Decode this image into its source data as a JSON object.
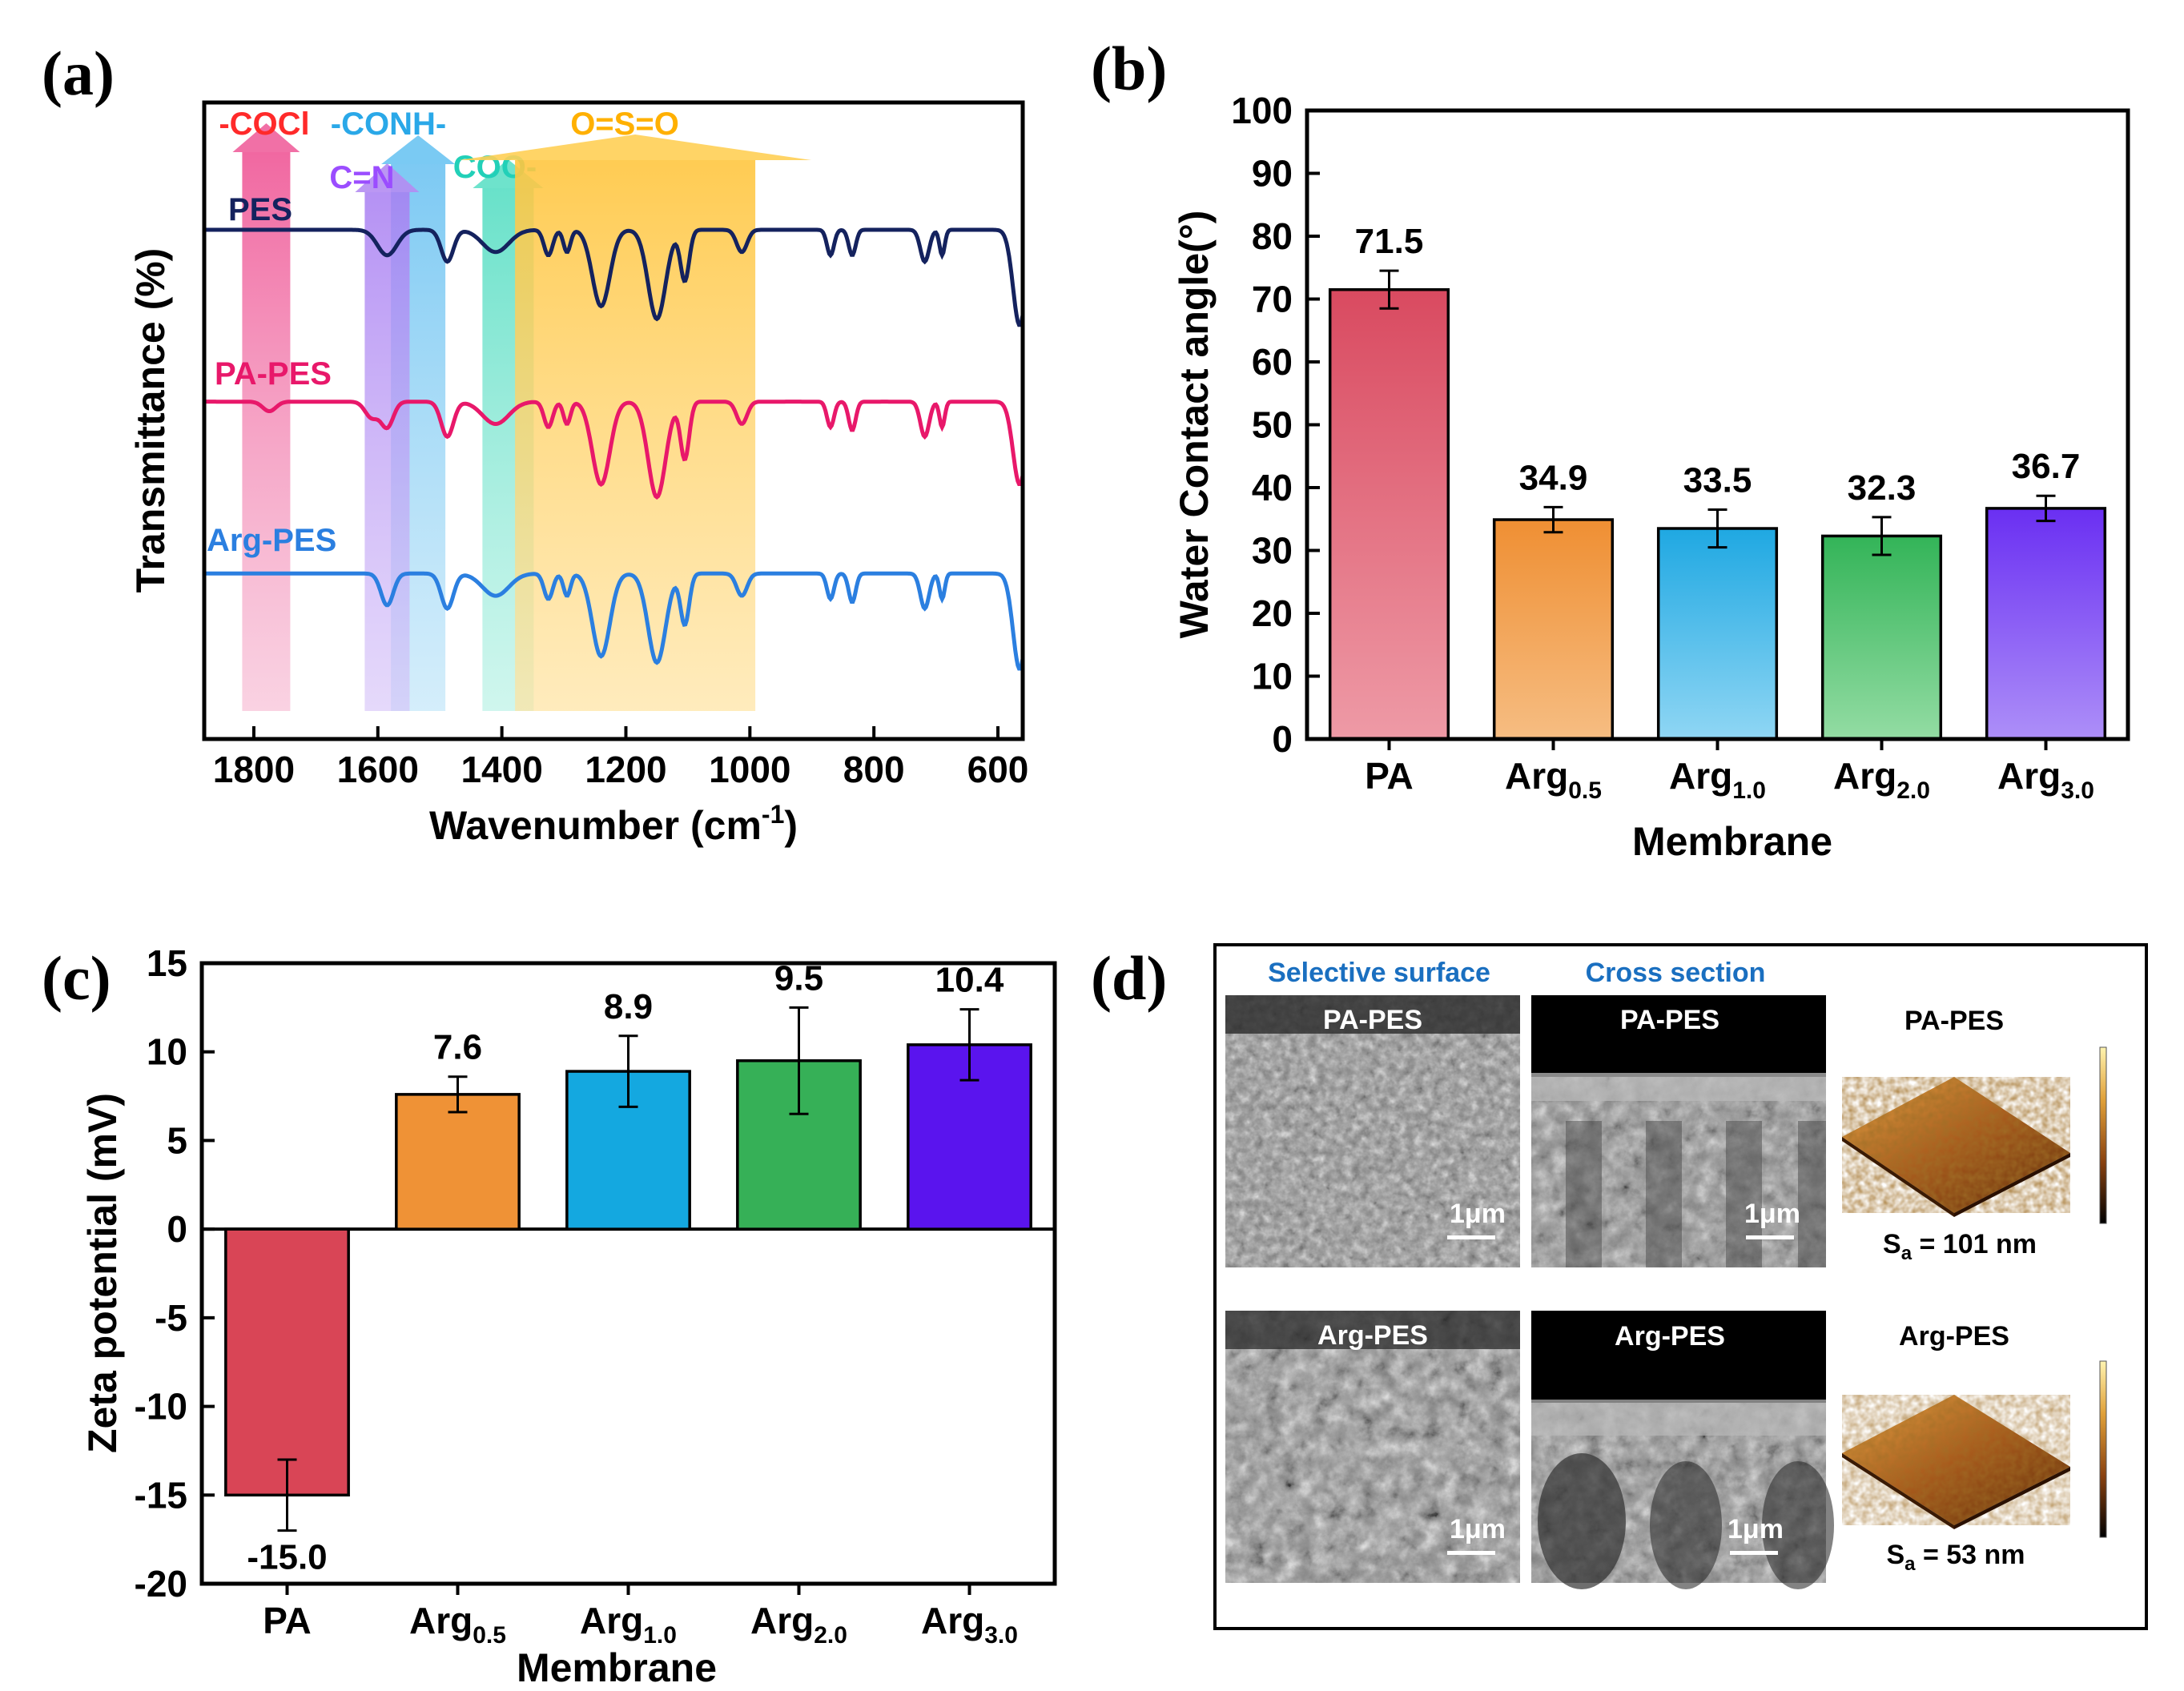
{
  "panels": {
    "a": {
      "label": "(a)"
    },
    "b": {
      "label": "(b)"
    },
    "c": {
      "label": "(c)"
    },
    "d": {
      "label": "(d)"
    }
  },
  "chart_data": [
    {
      "id": "a",
      "type": "line",
      "title": "",
      "xlabel": "Wavenumber (cm",
      "xlabel_sup": "-1",
      "xlabel_close": ")",
      "ylabel": "Transmittance (%)",
      "xlim": [
        1880,
        560
      ],
      "ylim": [
        0,
        1
      ],
      "x_ticks": [
        1800,
        1600,
        1400,
        1200,
        1000,
        800,
        600
      ],
      "series": [
        {
          "name": "PES",
          "color": "#14225e",
          "baseline": 0.8,
          "dips": [
            [
              1585,
              0.04,
              22
            ],
            [
              1488,
              0.05,
              14
            ],
            [
              1410,
              0.035,
              30
            ],
            [
              1325,
              0.04,
              10
            ],
            [
              1295,
              0.035,
              8
            ],
            [
              1240,
              0.12,
              20
            ],
            [
              1150,
              0.14,
              20
            ],
            [
              1105,
              0.08,
              10
            ],
            [
              1013,
              0.035,
              12
            ],
            [
              870,
              0.04,
              8
            ],
            [
              835,
              0.04,
              8
            ],
            [
              718,
              0.05,
              10
            ],
            [
              690,
              0.04,
              6
            ],
            [
              565,
              0.15,
              15
            ]
          ]
        },
        {
          "name": "PA-PES",
          "color": "#e8186a",
          "baseline": 0.53,
          "dips": [
            [
              1775,
              0.015,
              15
            ],
            [
              1610,
              0.025,
              15
            ],
            [
              1585,
              0.04,
              14
            ],
            [
              1488,
              0.055,
              14
            ],
            [
              1410,
              0.035,
              30
            ],
            [
              1325,
              0.04,
              10
            ],
            [
              1295,
              0.035,
              8
            ],
            [
              1240,
              0.13,
              20
            ],
            [
              1150,
              0.15,
              20
            ],
            [
              1105,
              0.09,
              10
            ],
            [
              1013,
              0.035,
              12
            ],
            [
              870,
              0.04,
              8
            ],
            [
              835,
              0.045,
              8
            ],
            [
              718,
              0.055,
              10
            ],
            [
              690,
              0.04,
              6
            ],
            [
              565,
              0.13,
              15
            ]
          ]
        },
        {
          "name": "Arg-PES",
          "color": "#2b7fe0",
          "baseline": 0.26,
          "dips": [
            [
              1585,
              0.05,
              14
            ],
            [
              1488,
              0.055,
              14
            ],
            [
              1410,
              0.035,
              30
            ],
            [
              1325,
              0.04,
              10
            ],
            [
              1295,
              0.035,
              8
            ],
            [
              1240,
              0.13,
              20
            ],
            [
              1150,
              0.14,
              20
            ],
            [
              1105,
              0.08,
              10
            ],
            [
              1013,
              0.035,
              12
            ],
            [
              870,
              0.04,
              8
            ],
            [
              835,
              0.045,
              8
            ],
            [
              718,
              0.055,
              10
            ],
            [
              690,
              0.04,
              6
            ],
            [
              565,
              0.15,
              15
            ]
          ]
        }
      ],
      "annotations": [
        {
          "text": "-COCl",
          "wavenumber": 1780,
          "color": "#ff2a2a",
          "band_color": "#f0609c"
        },
        {
          "text": "-CONH-",
          "wavenumber": 1535,
          "color": "#2aa8e8",
          "band_color": "#6cc4f2"
        },
        {
          "text": "C=N",
          "wavenumber": 1585,
          "color": "#9b4dff",
          "band_color": "#b48cf2"
        },
        {
          "text": "COO-",
          "wavenumber": 1390,
          "color": "#22d0b8",
          "band_color": "#5ee0c6"
        },
        {
          "text": "O=S=O",
          "wavenumber": 1185,
          "color": "#ffb000",
          "band_color": "#ffcf55"
        }
      ]
    },
    {
      "id": "b",
      "type": "bar",
      "title": "",
      "xlabel": "Membrane",
      "ylabel": "Water Contact angle(°)",
      "ylim": [
        0,
        100
      ],
      "y_ticks": [
        0,
        10,
        20,
        30,
        40,
        50,
        60,
        70,
        80,
        90,
        100
      ],
      "categories": [
        {
          "base": "PA",
          "sub": ""
        },
        {
          "base": "Arg",
          "sub": "0.5"
        },
        {
          "base": "Arg",
          "sub": "1.0"
        },
        {
          "base": "Arg",
          "sub": "2.0"
        },
        {
          "base": "Arg",
          "sub": "3.0"
        }
      ],
      "values": [
        71.5,
        34.9,
        33.5,
        32.3,
        36.7
      ],
      "value_labels": [
        "71.5",
        "34.9",
        "33.5",
        "32.3",
        "36.7"
      ],
      "errors": [
        3.0,
        2.0,
        3.0,
        3.0,
        2.0
      ],
      "colors": [
        [
          "#d94a60",
          "#ee9aa6"
        ],
        [
          "#ef8f33",
          "#f6bd82"
        ],
        [
          "#1fa8e2",
          "#8fd6f4"
        ],
        [
          "#33b458",
          "#93dca3"
        ],
        [
          "#6a2ff2",
          "#ad8ff8"
        ]
      ]
    },
    {
      "id": "c",
      "type": "bar",
      "title": "",
      "xlabel": "Membrane",
      "ylabel": "Zeta potential (mV)",
      "ylim": [
        -20,
        15
      ],
      "y_ticks": [
        -20,
        -15,
        -10,
        -5,
        0,
        5,
        10,
        15
      ],
      "y_tick_labels": [
        "-20",
        "-15",
        "-10",
        "-5",
        "0",
        "5",
        "10",
        "15"
      ],
      "categories": [
        {
          "base": "PA",
          "sub": ""
        },
        {
          "base": "Arg",
          "sub": "0.5"
        },
        {
          "base": "Arg",
          "sub": "1.0"
        },
        {
          "base": "Arg",
          "sub": "2.0"
        },
        {
          "base": "Arg",
          "sub": "3.0"
        }
      ],
      "values": [
        -15.0,
        7.6,
        8.9,
        9.5,
        10.4
      ],
      "value_labels": [
        "-15.0",
        "7.6",
        "8.9",
        "9.5",
        "10.4"
      ],
      "errors": [
        2.0,
        1.0,
        2.0,
        3.0,
        2.0
      ],
      "colors": [
        "#d94556",
        "#ef9236",
        "#14a8e0",
        "#36b057",
        "#5a14ee"
      ]
    }
  ],
  "panel_d": {
    "headers": {
      "surface": "Selective surface",
      "cross": "Cross section"
    },
    "rows": [
      {
        "surface_label": "PA-PES",
        "cross_label": "PA-PES",
        "afm_label": "PA-PES",
        "scale": "1μm",
        "sa_sym": "S",
        "sa_sub": "a",
        "sa_value": " = 101 nm"
      },
      {
        "surface_label": "Arg-PES",
        "cross_label": "Arg-PES",
        "afm_label": "Arg-PES",
        "scale": "1μm",
        "sa_sym": "S",
        "sa_sub": "a",
        "sa_value": " = 53 nm"
      }
    ]
  }
}
